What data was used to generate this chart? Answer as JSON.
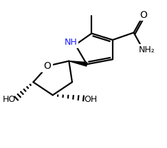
{
  "bg_color": "#ffffff",
  "line_color": "#000000",
  "nh_color": "#1a1aff",
  "line_width": 1.6,
  "figsize": [
    2.43,
    2.15
  ],
  "dpi": 100,
  "xlim": [
    0.0,
    10.0
  ],
  "ylim": [
    0.5,
    9.5
  ]
}
